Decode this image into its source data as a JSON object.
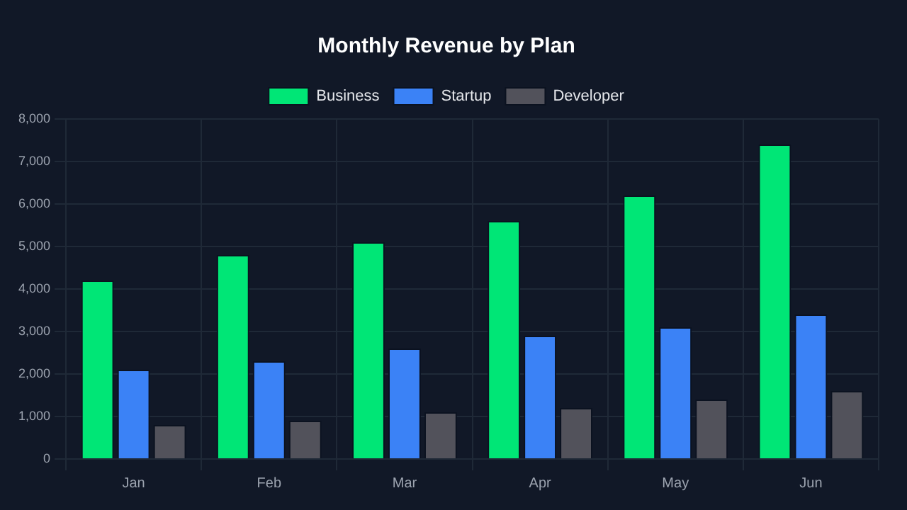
{
  "chart_data": {
    "type": "bar",
    "title": "Monthly Revenue by Plan",
    "categories": [
      "Jan",
      "Feb",
      "Mar",
      "Apr",
      "May",
      "Jun"
    ],
    "series": [
      {
        "name": "Business",
        "color": "#00e676",
        "values": [
          4200,
          4800,
          5100,
          5600,
          6200,
          7400
        ]
      },
      {
        "name": "Startup",
        "color": "#3b82f6",
        "values": [
          2100,
          2300,
          2600,
          2900,
          3100,
          3400
        ]
      },
      {
        "name": "Developer",
        "color": "#52525b",
        "values": [
          800,
          900,
          1100,
          1200,
          1400,
          1600
        ]
      }
    ],
    "ylim": [
      0,
      8000
    ],
    "yticks": [
      0,
      {
        "value": 1000,
        "label": "1,000"
      },
      {
        "value": 2000,
        "label": "2,000"
      },
      {
        "value": 3000,
        "label": "3,000"
      },
      {
        "value": 4000,
        "label": "4,000"
      },
      {
        "value": 5000,
        "label": "5,000"
      },
      {
        "value": 6000,
        "label": "6,000"
      },
      {
        "value": 7000,
        "label": "7,000"
      },
      {
        "value": 8000,
        "label": "8,000"
      }
    ],
    "grid": true,
    "legend": "top"
  }
}
